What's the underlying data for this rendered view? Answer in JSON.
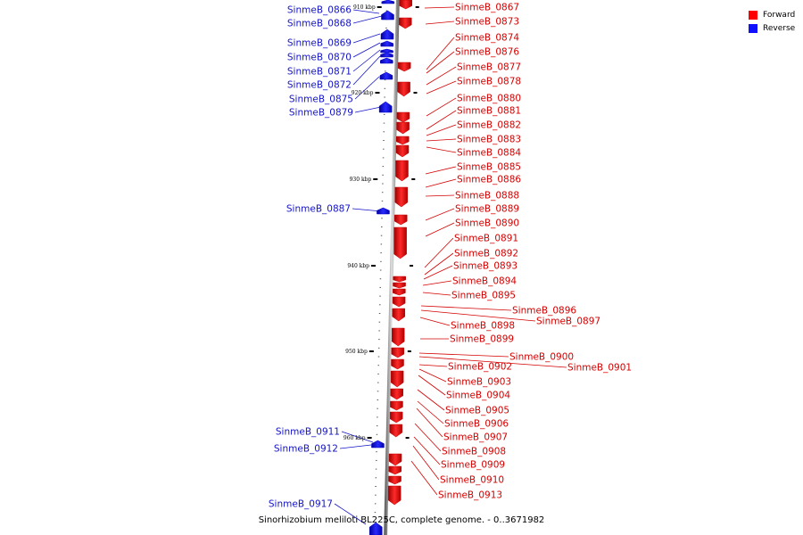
{
  "caption": "Sinorhizobium meliloti BL225C, complete genome. - 0..3671982",
  "legend": {
    "forward": {
      "label": "Forward",
      "color": "#ff0000"
    },
    "reverse": {
      "label": "Reverse",
      "color": "#1010ff"
    }
  },
  "ticks": [
    {
      "label": "910 kbp",
      "kbp": 910
    },
    {
      "label": "920 kbp",
      "kbp": 920
    },
    {
      "label": "930 kbp",
      "kbp": 930
    },
    {
      "label": "940 kbp",
      "kbp": 940
    },
    {
      "label": "950 kbp",
      "kbp": 950
    },
    {
      "label": "960 kbp",
      "kbp": 960
    }
  ],
  "forward_genes": [
    "SinmeB_0867",
    "SinmeB_0873",
    "SinmeB_0874",
    "SinmeB_0876",
    "SinmeB_0877",
    "SinmeB_0878",
    "SinmeB_0880",
    "SinmeB_0881",
    "SinmeB_0882",
    "SinmeB_0883",
    "SinmeB_0884",
    "SinmeB_0885",
    "SinmeB_0886",
    "SinmeB_0888",
    "SinmeB_0889",
    "SinmeB_0890",
    "SinmeB_0891",
    "SinmeB_0892",
    "SinmeB_0893",
    "SinmeB_0894",
    "SinmeB_0895",
    "SinmeB_0896",
    "SinmeB_0897",
    "SinmeB_0898",
    "SinmeB_0899",
    "SinmeB_0900",
    "SinmeB_0901",
    "SinmeB_0902",
    "SinmeB_0903",
    "SinmeB_0904",
    "SinmeB_0905",
    "SinmeB_0906",
    "SinmeB_0907",
    "SinmeB_0908",
    "SinmeB_0909",
    "SinmeB_0910",
    "SinmeB_0913"
  ],
  "reverse_genes": [
    "SinmeB_0866",
    "SinmeB_0868",
    "SinmeB_0869",
    "SinmeB_0870",
    "SinmeB_0871",
    "SinmeB_0872",
    "SinmeB_0875",
    "SinmeB_0879",
    "SinmeB_0887",
    "SinmeB_0911",
    "SinmeB_0912",
    "SinmeB_0917"
  ]
}
